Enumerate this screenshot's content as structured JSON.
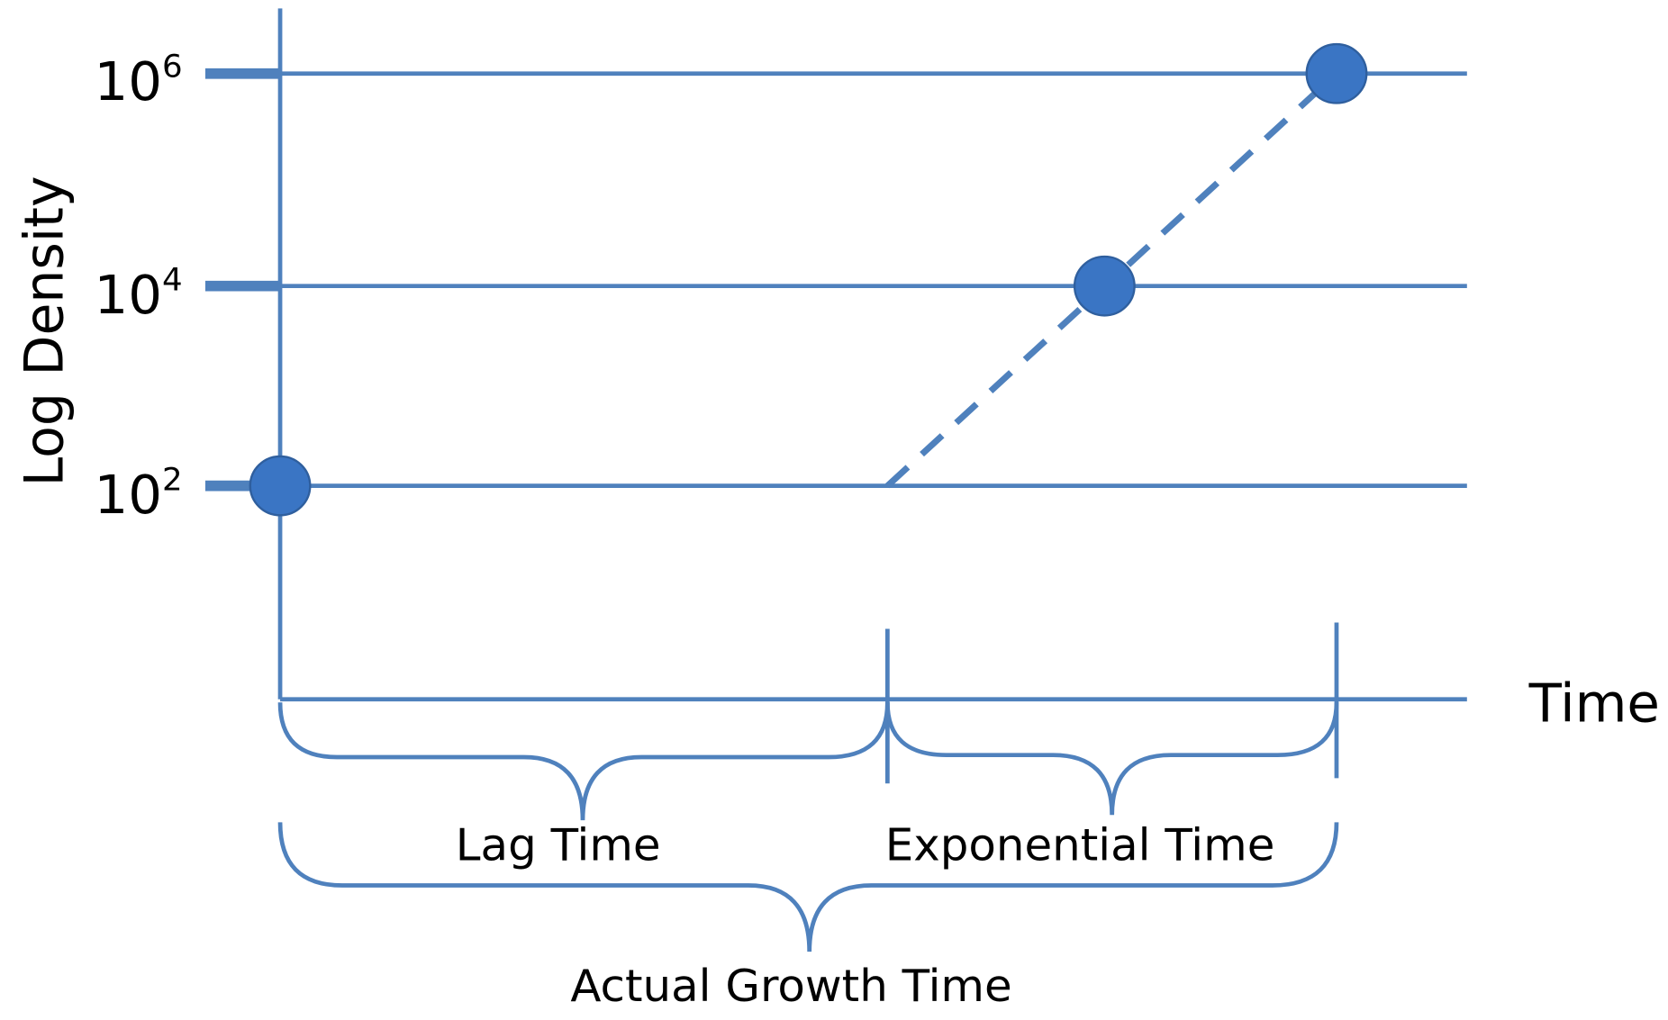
{
  "y_axis": {
    "label": "Log Density",
    "ticks": [
      {
        "base": "10",
        "exponent": "6"
      },
      {
        "base": "10",
        "exponent": "4"
      },
      {
        "base": "10",
        "exponent": "2"
      }
    ]
  },
  "x_axis": {
    "label": "Time"
  },
  "braces": {
    "lag": "Lag Time",
    "exponential": "Exponential Time",
    "total": "Actual Growth Time"
  }
}
